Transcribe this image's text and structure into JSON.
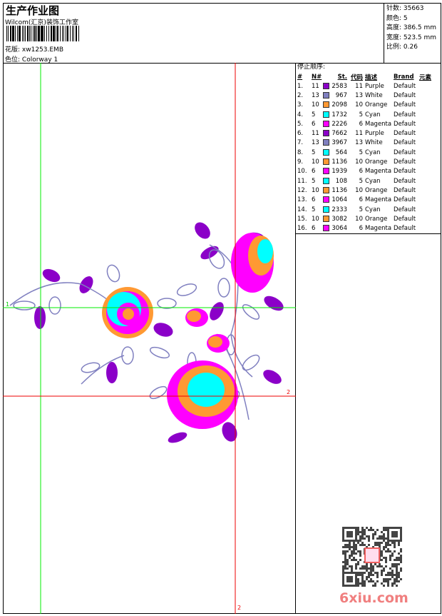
{
  "header": {
    "title": "生产作业图",
    "company": "Wilcom(汇京)装饰工作室",
    "pattern_label": "花版:",
    "pattern_value": "xw1253.EMB",
    "colorway_label": "色位:",
    "colorway_value": "Colorway 1"
  },
  "info": {
    "stitches": "针数: 35663",
    "colors": "颜色: 5",
    "height": "高度: 386.5 mm",
    "width": "宽度: 523.5 mm",
    "scale": "比例: 0.26"
  },
  "markers": {
    "green": "1",
    "red_h": "2",
    "red_v": "2"
  },
  "stop_sequence": {
    "caption": "停止顺序:",
    "columns": [
      "#",
      "N#",
      "St.",
      "代码",
      "描述",
      "Brand",
      "元素"
    ],
    "rows": [
      {
        "i": "1.",
        "n": "11",
        "color": "#8b00c8",
        "st": "2583",
        "code": "11",
        "desc": "Purple",
        "brand": "Default"
      },
      {
        "i": "2.",
        "n": "13",
        "color": "#8080c0",
        "st": "967",
        "code": "13",
        "desc": "White",
        "brand": "Default"
      },
      {
        "i": "3.",
        "n": "10",
        "color": "#ff9933",
        "st": "2098",
        "code": "10",
        "desc": "Orange",
        "brand": "Default"
      },
      {
        "i": "4.",
        "n": "5",
        "color": "#00ffff",
        "st": "1732",
        "code": "5",
        "desc": "Cyan",
        "brand": "Default"
      },
      {
        "i": "5.",
        "n": "6",
        "color": "#ff00ff",
        "st": "2226",
        "code": "6",
        "desc": "Magenta",
        "brand": "Default"
      },
      {
        "i": "6.",
        "n": "11",
        "color": "#8b00c8",
        "st": "7662",
        "code": "11",
        "desc": "Purple",
        "brand": "Default"
      },
      {
        "i": "7.",
        "n": "13",
        "color": "#8080c0",
        "st": "3967",
        "code": "13",
        "desc": "White",
        "brand": "Default"
      },
      {
        "i": "8.",
        "n": "5",
        "color": "#00ffff",
        "st": "564",
        "code": "5",
        "desc": "Cyan",
        "brand": "Default"
      },
      {
        "i": "9.",
        "n": "10",
        "color": "#ff9933",
        "st": "1136",
        "code": "10",
        "desc": "Orange",
        "brand": "Default"
      },
      {
        "i": "10.",
        "n": "6",
        "color": "#ff00ff",
        "st": "1939",
        "code": "6",
        "desc": "Magenta",
        "brand": "Default"
      },
      {
        "i": "11.",
        "n": "5",
        "color": "#00ffff",
        "st": "108",
        "code": "5",
        "desc": "Cyan",
        "brand": "Default"
      },
      {
        "i": "12.",
        "n": "10",
        "color": "#ff9933",
        "st": "1136",
        "code": "10",
        "desc": "Orange",
        "brand": "Default"
      },
      {
        "i": "13.",
        "n": "6",
        "color": "#ff00ff",
        "st": "1064",
        "code": "6",
        "desc": "Magenta",
        "brand": "Default"
      },
      {
        "i": "14.",
        "n": "5",
        "color": "#00ffff",
        "st": "2333",
        "code": "5",
        "desc": "Cyan",
        "brand": "Default"
      },
      {
        "i": "15.",
        "n": "10",
        "color": "#ff9933",
        "st": "3082",
        "code": "10",
        "desc": "Orange",
        "brand": "Default"
      },
      {
        "i": "16.",
        "n": "6",
        "color": "#ff00ff",
        "st": "3064",
        "code": "6",
        "desc": "Magenta",
        "brand": "Default"
      }
    ]
  },
  "watermark": {
    "text": "6xiu.com",
    "seal": "以图版"
  }
}
